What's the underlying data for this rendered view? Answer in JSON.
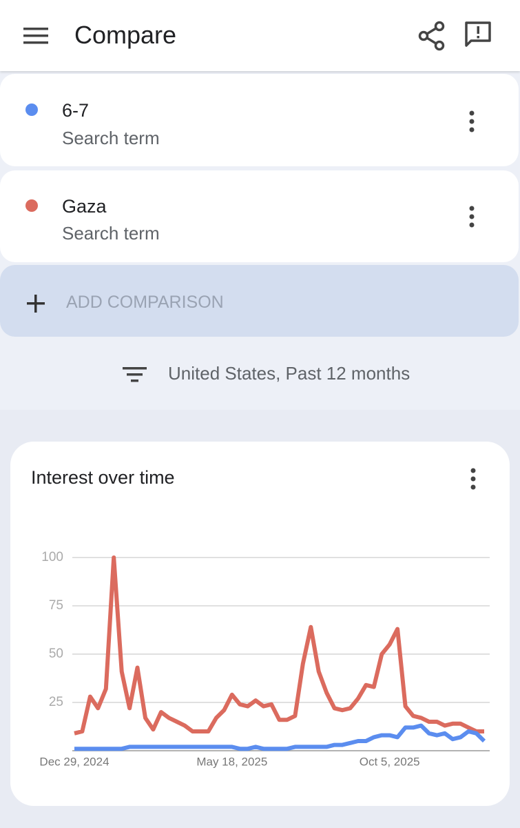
{
  "header": {
    "title": "Compare"
  },
  "term_type": "Search term",
  "add_comparison": "ADD COMPARISON",
  "filter": "United States, Past 12 months",
  "chart_data": {
    "type": "line",
    "title": "Interest over time",
    "categories": [
      "Dec 29, 2024",
      null,
      null,
      null,
      null,
      null,
      null,
      null,
      null,
      null,
      null,
      null,
      null,
      null,
      null,
      null,
      null,
      null,
      null,
      null,
      "May 18, 2025",
      null,
      null,
      null,
      null,
      null,
      null,
      null,
      null,
      null,
      null,
      null,
      null,
      null,
      null,
      null,
      null,
      null,
      null,
      null,
      "Oct 5, 2025",
      null,
      null,
      null,
      null,
      null,
      null,
      null,
      null,
      null,
      null,
      null,
      null
    ],
    "series": [
      {
        "name": "6-7",
        "color": "#5b8def",
        "values": [
          1,
          1,
          1,
          1,
          1,
          1,
          1,
          2,
          2,
          2,
          2,
          2,
          2,
          2,
          2,
          2,
          2,
          2,
          2,
          2,
          2,
          1,
          1,
          2,
          1,
          1,
          1,
          1,
          2,
          2,
          2,
          2,
          2,
          3,
          3,
          4,
          5,
          5,
          7,
          8,
          8,
          7,
          12,
          12,
          13,
          9,
          8,
          9,
          6,
          7,
          10,
          9,
          5
        ]
      },
      {
        "name": "Gaza",
        "color": "#db6b5e",
        "values": [
          9,
          10,
          28,
          22,
          32,
          100,
          41,
          22,
          43,
          17,
          11,
          20,
          17,
          15,
          13,
          10,
          10,
          10,
          17,
          21,
          29,
          24,
          23,
          26,
          23,
          24,
          16,
          16,
          18,
          45,
          64,
          41,
          30,
          22,
          21,
          22,
          27,
          34,
          33,
          50,
          55,
          63,
          23,
          18,
          17,
          15,
          15,
          13,
          14,
          14,
          12,
          10,
          10
        ]
      }
    ],
    "ylim": [
      0,
      100
    ],
    "yticks": [
      25,
      50,
      75,
      100
    ],
    "grid": true
  }
}
